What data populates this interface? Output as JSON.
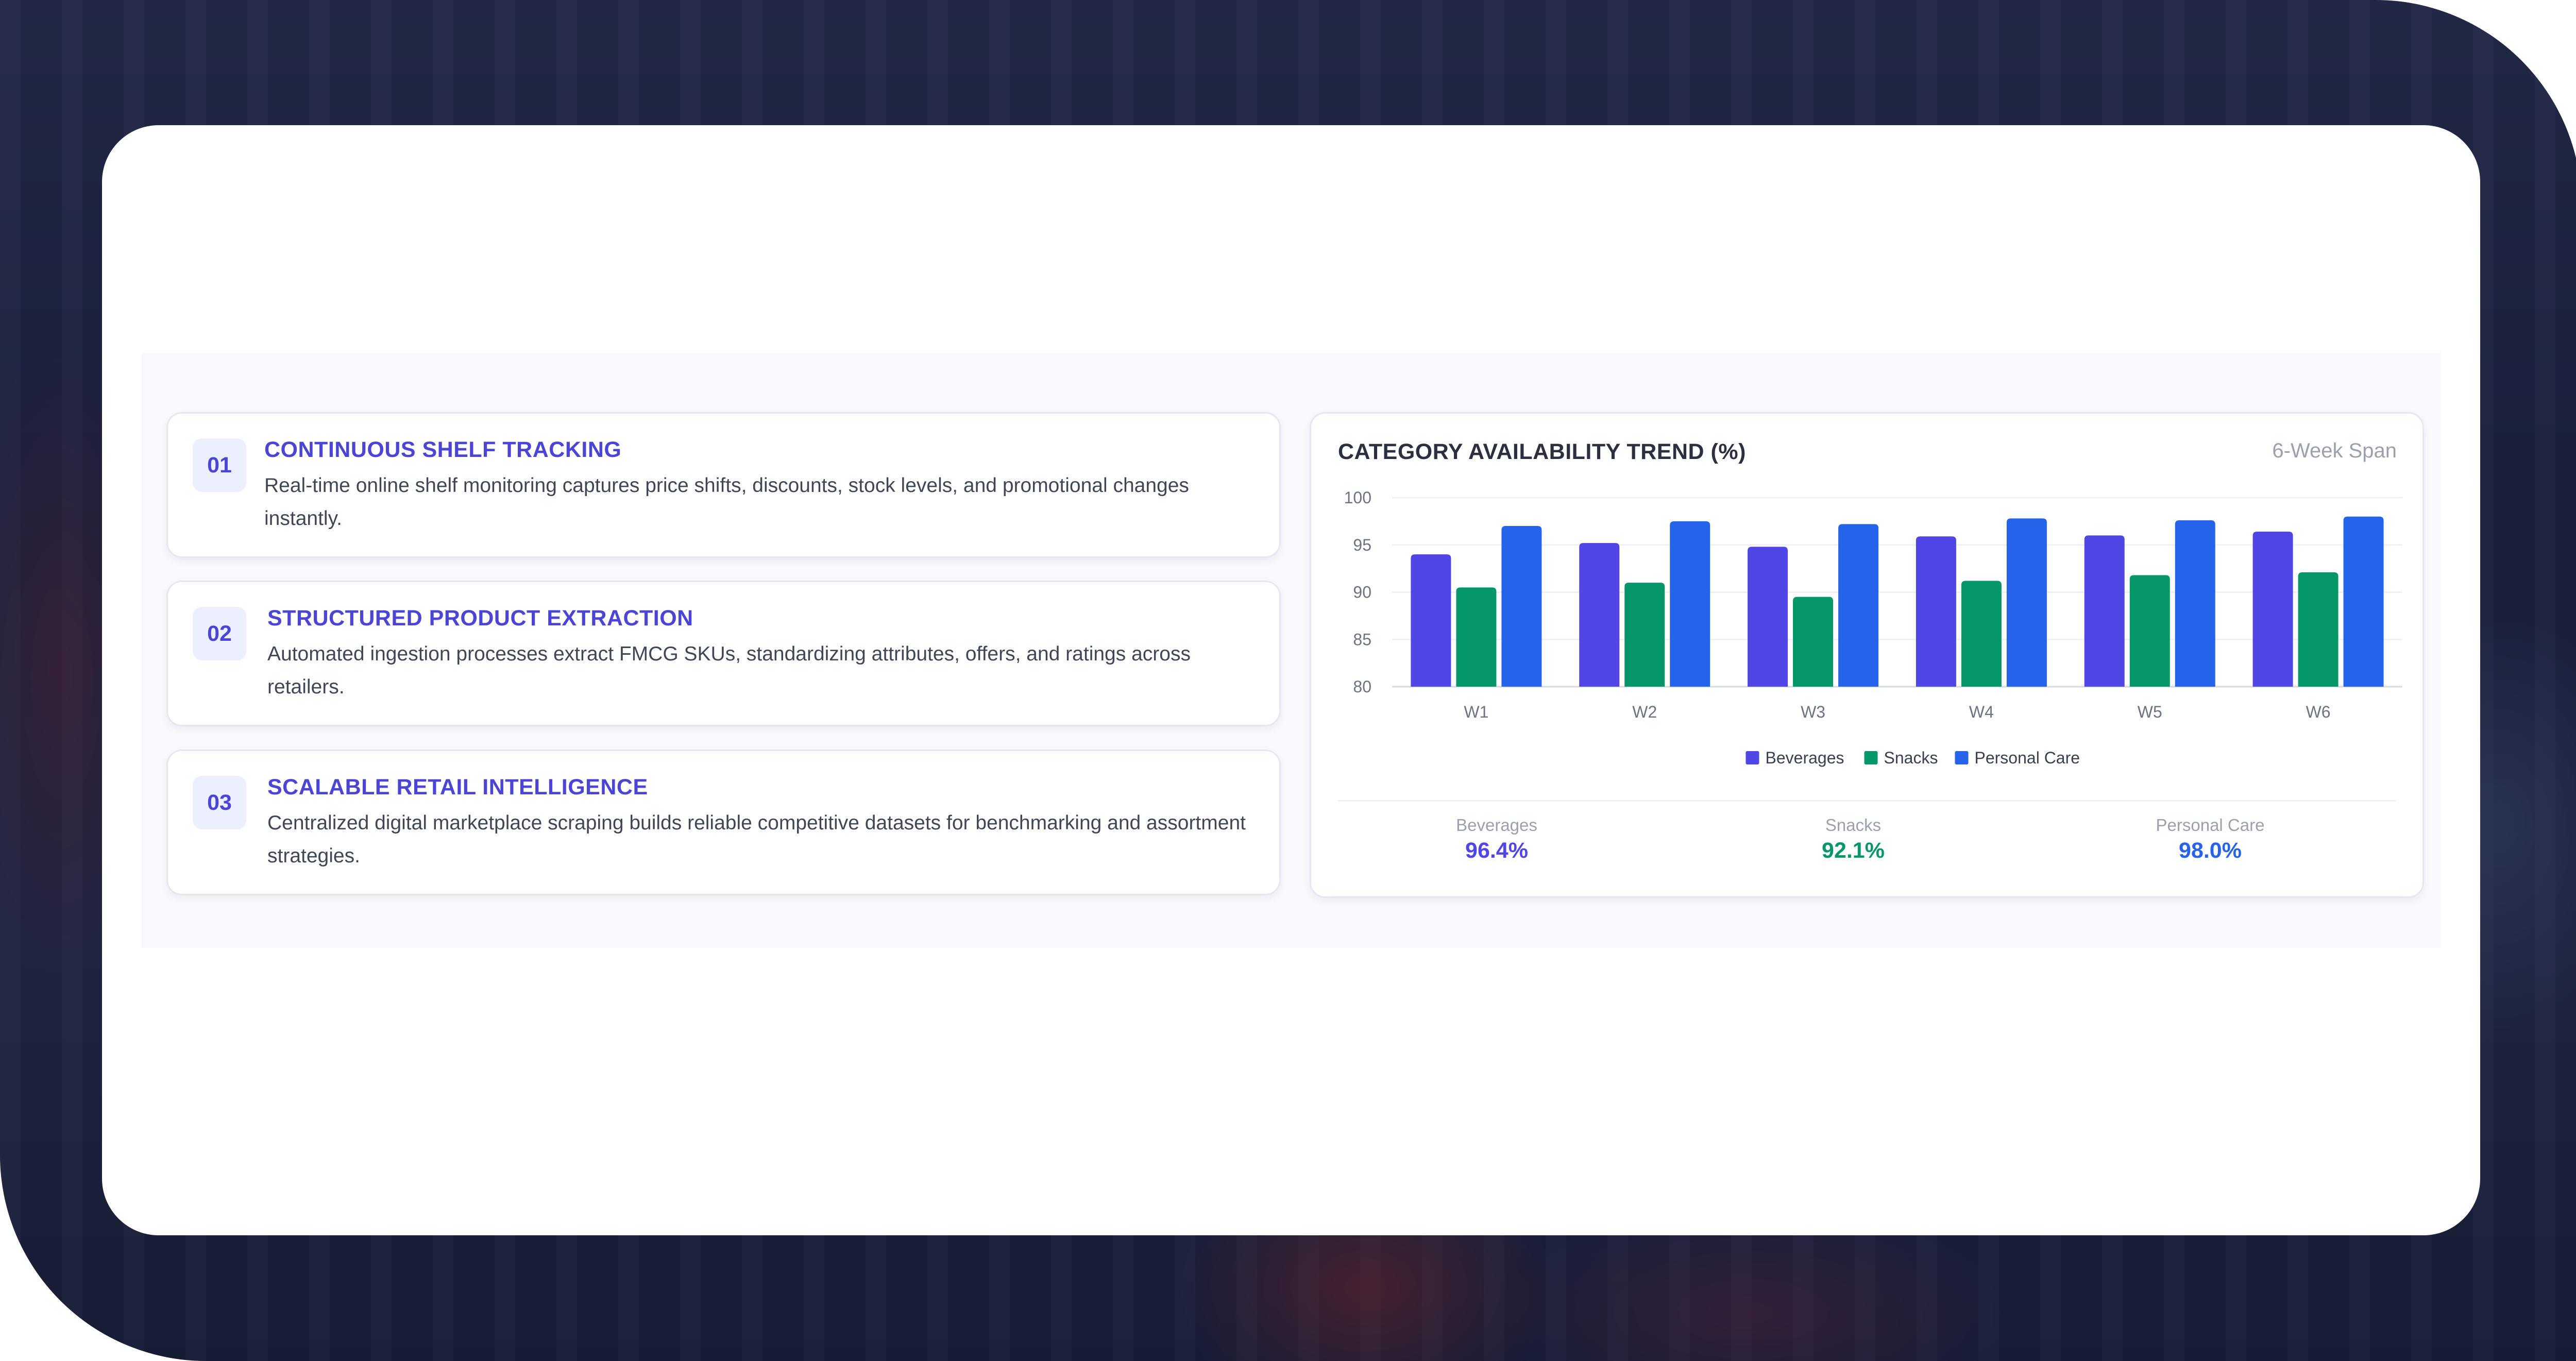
{
  "features": [
    {
      "number": "01",
      "title": "CONTINUOUS SHELF TRACKING",
      "description": "Real-time online shelf monitoring captures price shifts, discounts, stock levels, and promotional changes instantly."
    },
    {
      "number": "02",
      "title": "STRUCTURED PRODUCT EXTRACTION",
      "description": "Automated ingestion processes extract FMCG SKUs, standardizing attributes, offers, and ratings across retailers."
    },
    {
      "number": "03",
      "title": "SCALABLE RETAIL INTELLIGENCE",
      "description": "Centralized digital marketplace scraping builds reliable competitive datasets for benchmarking and assortment strategies."
    }
  ],
  "chart_card": {
    "title": "CATEGORY AVAILABILITY TREND (%)",
    "span_label": "6-Week Span",
    "summary": [
      {
        "label": "Beverages",
        "value": "96.4%",
        "color": "#4f46e5"
      },
      {
        "label": "Snacks",
        "value": "92.1%",
        "color": "#059669"
      },
      {
        "label": "Personal Care",
        "value": "98.0%",
        "color": "#2563eb"
      }
    ]
  },
  "chart_data": {
    "type": "bar",
    "categories": [
      "W1",
      "W2",
      "W3",
      "W4",
      "W5",
      "W6"
    ],
    "series": [
      {
        "name": "Beverages",
        "color": "#4f46e5",
        "values": [
          94,
          95.2,
          94.8,
          95.9,
          96,
          96.4
        ]
      },
      {
        "name": "Snacks",
        "color": "#059669",
        "values": [
          90.5,
          91,
          89.5,
          91.2,
          91.8,
          92.1
        ]
      },
      {
        "name": "Personal Care",
        "color": "#2563eb",
        "values": [
          97,
          97.5,
          97.2,
          97.8,
          97.6,
          98
        ]
      }
    ],
    "ylim": [
      80,
      100
    ],
    "yticks": [
      "80",
      "85",
      "90",
      "95",
      "100"
    ],
    "legend_position": "bottom-center",
    "grid": true,
    "xlabel": "",
    "ylabel": ""
  }
}
